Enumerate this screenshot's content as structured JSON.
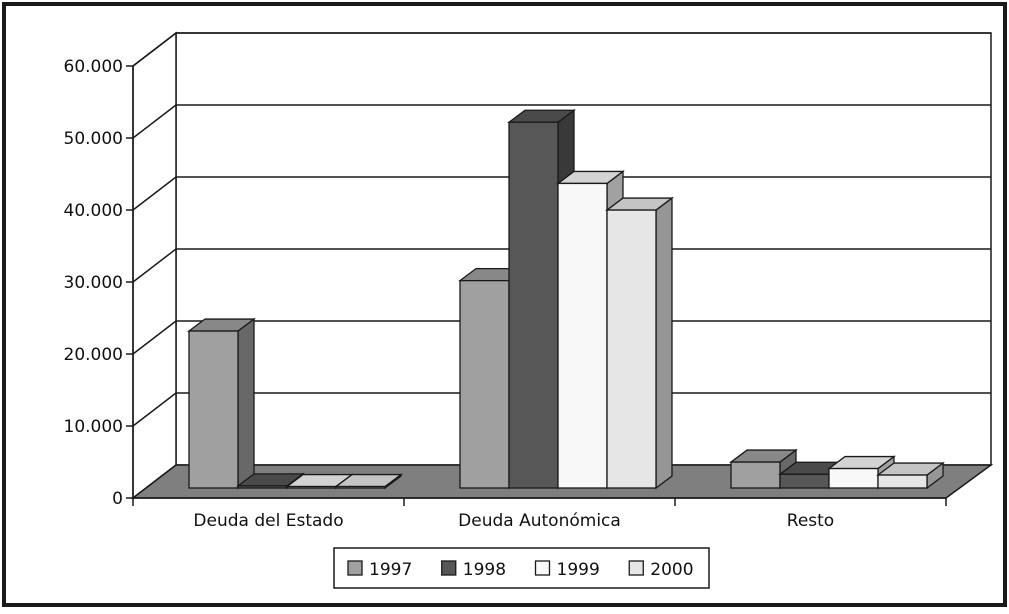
{
  "chart_data": {
    "type": "bar",
    "categories": [
      "Deuda del Estado",
      "Deuda Autonómica",
      "Resto"
    ],
    "series": [
      {
        "name": "1997",
        "values": [
          21800,
          28800,
          3600
        ]
      },
      {
        "name": "1998",
        "values": [
          300,
          50800,
          1900
        ]
      },
      {
        "name": "1999",
        "values": [
          200,
          42300,
          2700
        ]
      },
      {
        "name": "2000",
        "values": [
          200,
          38600,
          1800
        ]
      }
    ],
    "y_ticks": [
      "0",
      "10.000",
      "20.000",
      "30.000",
      "40.000",
      "50.000",
      "60.000"
    ],
    "ylim": [
      0,
      60000
    ],
    "grid": true,
    "legend_position": "bottom",
    "colors": {
      "1997": "#a0a0a0",
      "1998": "#575757",
      "1999": "#f8f8f8",
      "2000": "#e6e6e6",
      "floor": "#7f7f7f",
      "border": "#1a1a1a"
    }
  }
}
